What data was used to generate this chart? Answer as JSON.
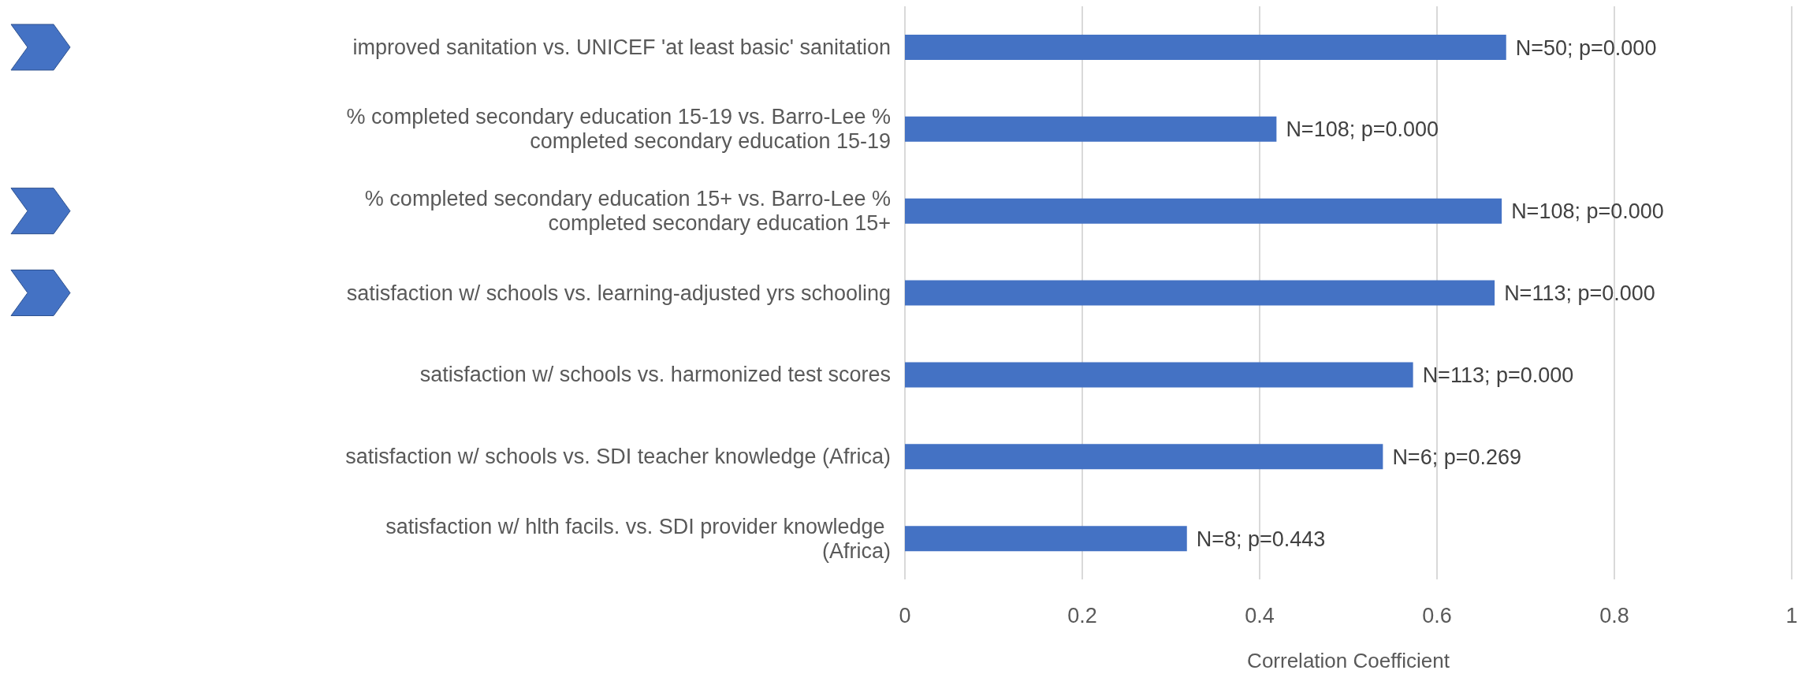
{
  "chart_data": {
    "type": "bar",
    "orientation": "horizontal",
    "xlabel": "Correlation Coefficient",
    "categories": [
      "improved sanitation vs. UNICEF 'at least basic' sanitation",
      "% completed secondary education 15-19 vs. Barro-Lee % completed secondary education 15-19",
      "% completed secondary education 15+ vs. Barro-Lee % completed secondary education 15+",
      "satisfaction w/ schools vs. learning-adjusted yrs schooling",
      "satisfaction w/ schools vs. harmonized test scores",
      "satisfaction w/ schools vs. SDI teacher knowledge (Africa)",
      "satisfaction w/ hlth facils. vs. SDI provider knowledge  (Africa)"
    ],
    "values": [
      0.678,
      0.419,
      0.673,
      0.665,
      0.573,
      0.539,
      0.318
    ],
    "value_labels": [
      "N=50; p=0.000",
      "N=108; p=0.000",
      "N=108; p=0.000",
      "N=113; p=0.000",
      "N=113; p=0.000",
      "N=6; p=0.269",
      "N=8; p=0.443"
    ],
    "color": "#4472c4",
    "xlim": [
      0,
      1
    ],
    "xticks": [
      0,
      0.2,
      0.4,
      0.6,
      0.8,
      1
    ],
    "grid": "x",
    "legend": false
  }
}
